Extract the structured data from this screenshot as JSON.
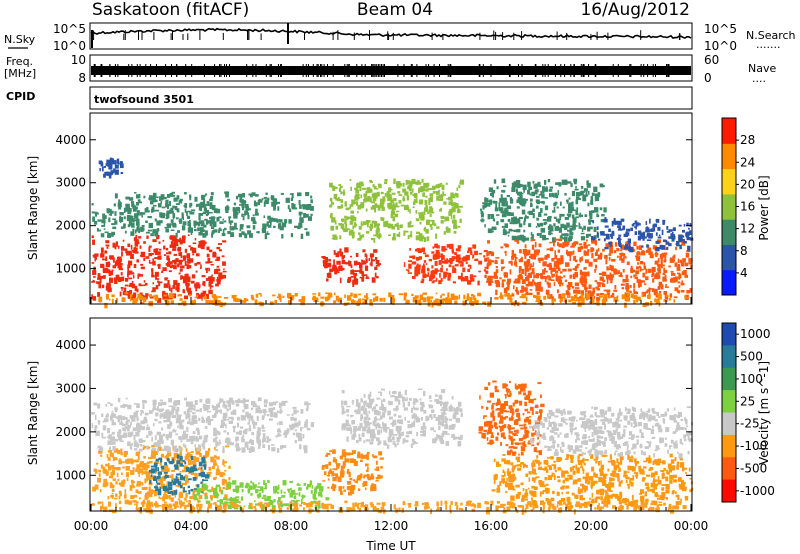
{
  "header": {
    "station": "Saskatoon (fitACF)",
    "beam": "Beam 04",
    "date": "16/Aug/2012"
  },
  "noise_panel": {
    "left_label": "N.Sky",
    "right_label": "N.Search",
    "right_dots": ".......",
    "tick_top": "10^5",
    "tick_bottom": "10^0"
  },
  "freq_panel": {
    "left_label_1": "Freq.",
    "left_label_2": "[MHz]",
    "left_tick_top": "10",
    "left_tick_bottom": "8",
    "right_label": "Nave",
    "right_dots": "....",
    "right_tick_top": "60",
    "right_tick_bottom": "0"
  },
  "cpid_panel": {
    "label": "CPID",
    "value": "twofsound 3501"
  },
  "chart_data": [
    {
      "type": "heatmap",
      "name": "power",
      "ylabel": "Slant Range [km]",
      "xlabel": "",
      "ylim": [
        200,
        4600
      ],
      "yticks": [
        1000,
        2000,
        3000,
        4000
      ],
      "xlim": [
        "00:00",
        "24:00"
      ],
      "colorbar_label": "Power [dB]",
      "colorbar_ticks": [
        "4",
        "8",
        "12",
        "16",
        "20",
        "24",
        "28"
      ],
      "colorbar_colors": [
        "#0a1aff",
        "#2a55a8",
        "#3c8a6a",
        "#8fc23c",
        "#ffd21a",
        "#ff8a00",
        "#ff1a00"
      ],
      "regions": [
        {
          "t0": 0.0,
          "t1": 5.3,
          "r0": 300,
          "r1": 1800,
          "color": "#ee2a10"
        },
        {
          "t0": 0.0,
          "t1": 8.8,
          "r0": 1800,
          "r1": 2800,
          "color": "#3c8a6a"
        },
        {
          "t0": 0.2,
          "t1": 1.2,
          "r0": 3200,
          "r1": 3600,
          "color": "#2a55a8"
        },
        {
          "t0": 9.2,
          "t1": 11.5,
          "r0": 700,
          "r1": 1500,
          "color": "#ee2a10"
        },
        {
          "t0": 9.5,
          "t1": 14.8,
          "r0": 1700,
          "r1": 3100,
          "color": "#8fc23c"
        },
        {
          "t0": 12.5,
          "t1": 16.0,
          "r0": 700,
          "r1": 1600,
          "color": "#ff3a10"
        },
        {
          "t0": 15.5,
          "t1": 20.5,
          "r0": 1700,
          "r1": 3100,
          "color": "#3c8a6a"
        },
        {
          "t0": 15.8,
          "t1": 24.0,
          "r0": 300,
          "r1": 1700,
          "color": "#ff5a10"
        },
        {
          "t0": 20.0,
          "t1": 24.0,
          "r0": 1500,
          "r1": 2200,
          "color": "#2a55a8"
        },
        {
          "t0": 0.0,
          "t1": 24.0,
          "r0": 200,
          "r1": 450,
          "color": "#ff8a00"
        }
      ]
    },
    {
      "type": "heatmap",
      "name": "velocity",
      "ylabel": "Slant Range [km]",
      "xlabel": "Time UT",
      "ylim": [
        200,
        4600
      ],
      "yticks": [
        1000,
        2000,
        3000,
        4000
      ],
      "xlim": [
        "00:00",
        "24:00"
      ],
      "xticks": [
        "00:00",
        "04:00",
        "08:00",
        "12:00",
        "16:00",
        "20:00",
        "00:00"
      ],
      "colorbar_label": "Velocity [m s^-1]",
      "colorbar_ticks": [
        "1000",
        "500",
        "100",
        "25",
        "-25",
        "-100",
        "-500",
        "-1000"
      ],
      "colorbar_colors": [
        "#1f4ab0",
        "#2a7a9a",
        "#3c9a50",
        "#7dd040",
        "#c8c8c8",
        "#ff9a10",
        "#ff5a10",
        "#ff0a00"
      ],
      "regions": [
        {
          "t0": 0.0,
          "t1": 5.5,
          "r0": 300,
          "r1": 1700,
          "color": "#ffa020"
        },
        {
          "t0": 2.3,
          "t1": 4.6,
          "r0": 600,
          "r1": 1500,
          "color": "#2a7a9a"
        },
        {
          "t0": 0.0,
          "t1": 8.8,
          "r0": 1600,
          "r1": 2800,
          "color": "#c8c8c8"
        },
        {
          "t0": 4.0,
          "t1": 9.5,
          "r0": 300,
          "r1": 900,
          "color": "#7dd040"
        },
        {
          "t0": 9.2,
          "t1": 11.6,
          "r0": 600,
          "r1": 1600,
          "color": "#ff8a10"
        },
        {
          "t0": 10.0,
          "t1": 14.8,
          "r0": 1700,
          "r1": 3000,
          "color": "#c8c8c8"
        },
        {
          "t0": 15.5,
          "t1": 18.0,
          "r0": 1500,
          "r1": 3200,
          "color": "#ff6a10"
        },
        {
          "t0": 16.0,
          "t1": 24.0,
          "r0": 300,
          "r1": 1500,
          "color": "#ff9a10"
        },
        {
          "t0": 17.5,
          "t1": 24.0,
          "r0": 1500,
          "r1": 2600,
          "color": "#c8c8c8"
        },
        {
          "t0": 0.0,
          "t1": 24.0,
          "r0": 200,
          "r1": 420,
          "color": "#ffa020"
        }
      ]
    }
  ]
}
